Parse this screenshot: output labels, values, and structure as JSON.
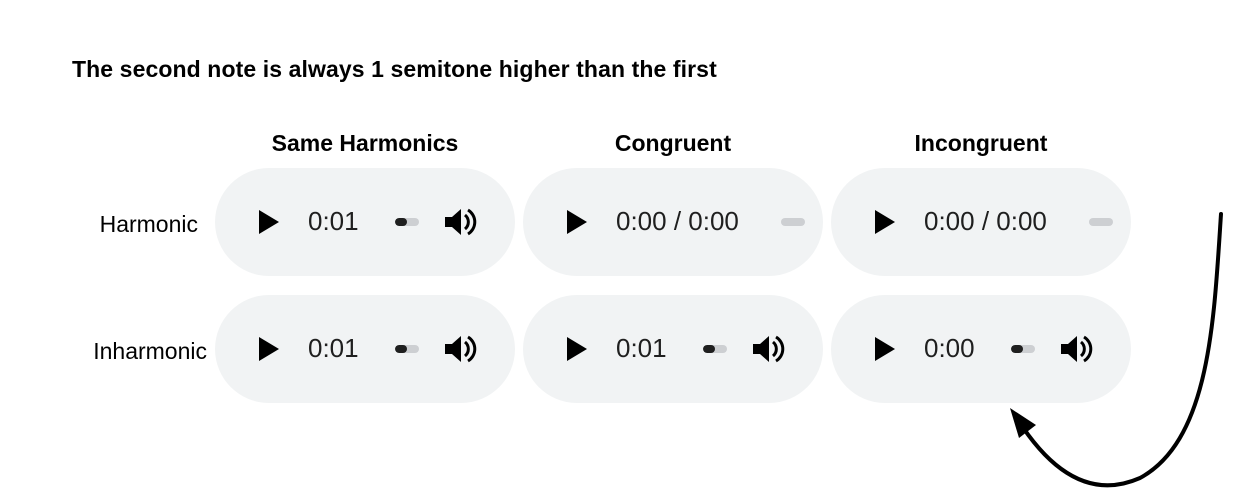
{
  "heading": "The second note is always 1 semitone higher than the first",
  "columns": [
    "Same Harmonics",
    "Congruent",
    "Incongruent"
  ],
  "rows": [
    "Harmonic",
    "Inharmonic"
  ],
  "players": [
    [
      {
        "time": "0:01",
        "progress": 0.5
      },
      {
        "time": "0:00 / 0:00",
        "progress": 0
      },
      {
        "time": "0:00 / 0:00",
        "progress": 0
      }
    ],
    [
      {
        "time": "0:01",
        "progress": 0.5
      },
      {
        "time": "0:01",
        "progress": 0.5
      },
      {
        "time": "0:00",
        "progress": 0.5
      }
    ]
  ],
  "icons": {
    "play": "play-icon",
    "volume": "volume-icon",
    "arrow": "curved-arrow-icon"
  },
  "colors": {
    "player_bg": "#f1f3f4",
    "track": "#cdcfd2",
    "fill": "#1f1f1f"
  }
}
